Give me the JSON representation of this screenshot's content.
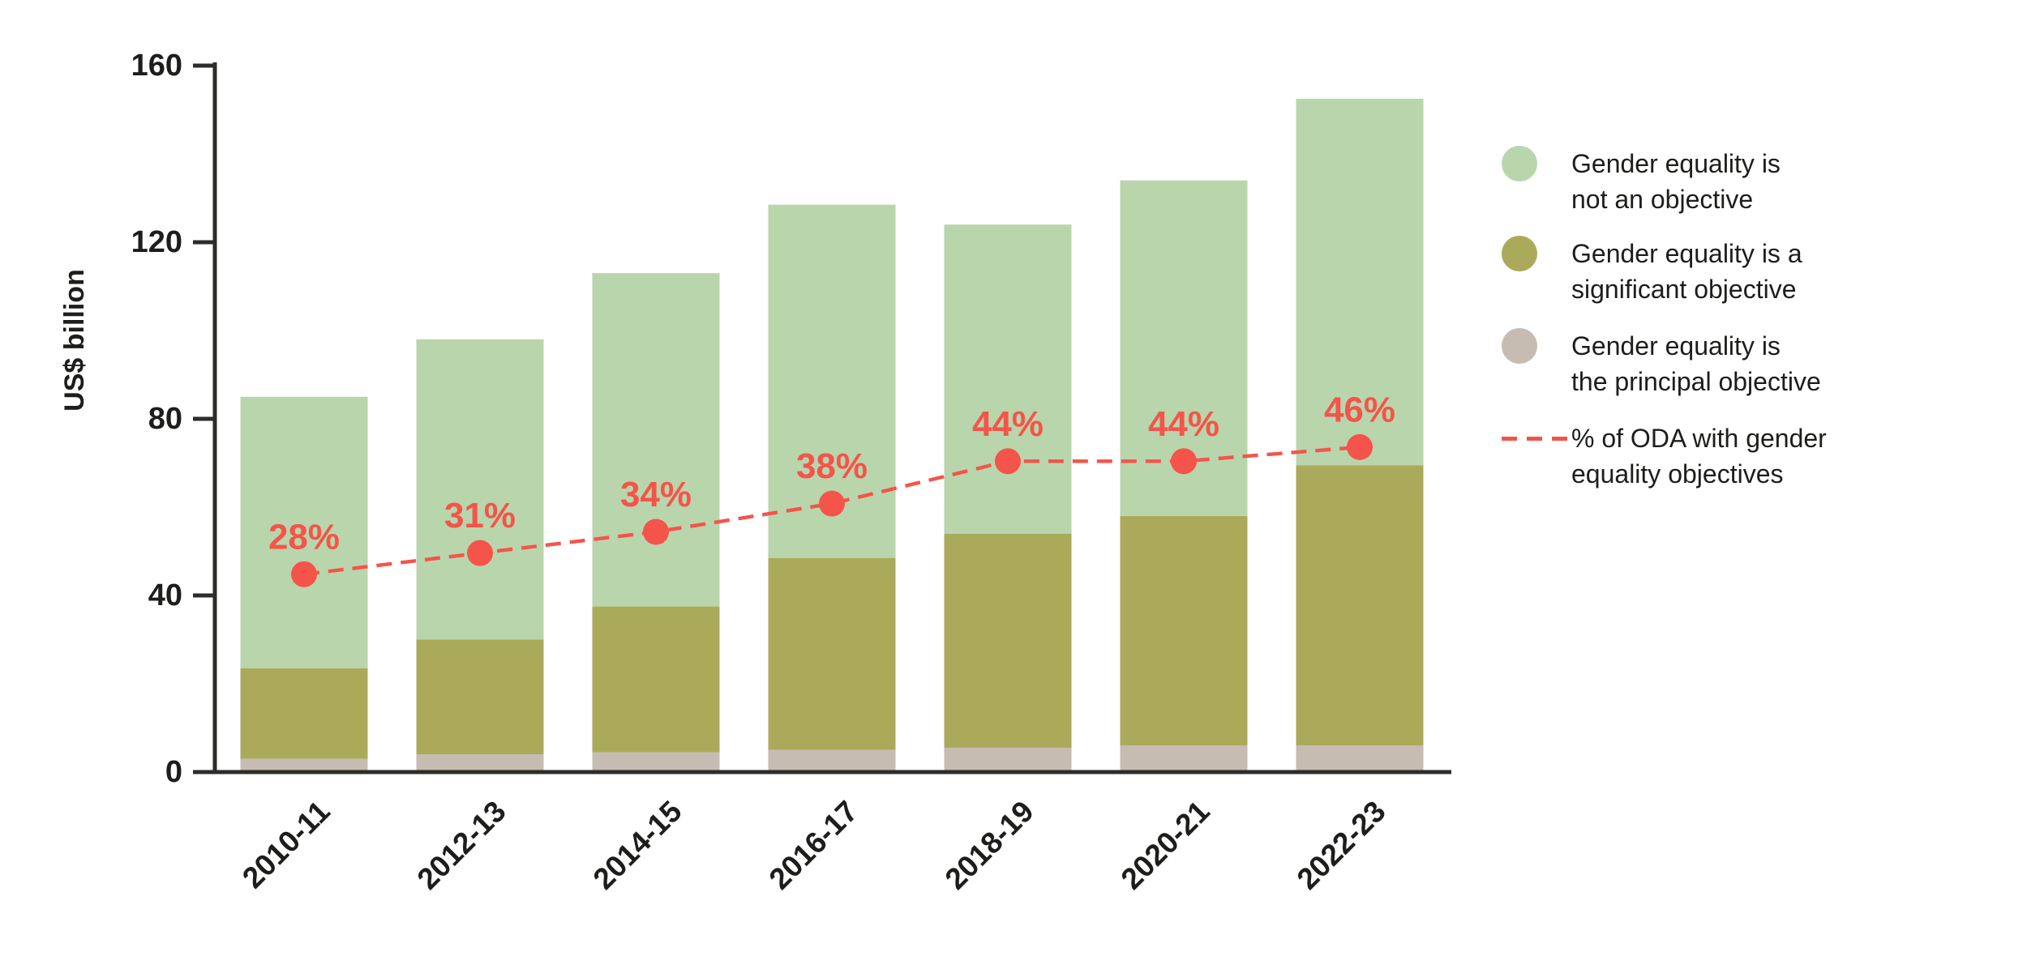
{
  "chart_data": {
    "type": "bar",
    "stacked": true,
    "title": "",
    "xlabel": "",
    "ylabel": "US$ billion",
    "ylim": [
      0,
      160
    ],
    "yticks": [
      0,
      40,
      80,
      120,
      160
    ],
    "grid": false,
    "legend_position": "right",
    "categories": [
      "2010-11",
      "2012-13",
      "2014-15",
      "2016-17",
      "2018-19",
      "2020-21",
      "2022-23"
    ],
    "totals": [
      85,
      98,
      113,
      128.5,
      124,
      134,
      152.5
    ],
    "series": [
      {
        "id": "principal",
        "name": "Gender equality is the principal objective",
        "color": "#c6bcb2",
        "values": [
          3,
          4,
          4.5,
          5,
          5.5,
          6,
          6
        ]
      },
      {
        "id": "significant",
        "name": "Gender equality is a significant objective",
        "color": "#abaa5a",
        "values": [
          20.5,
          26,
          33,
          43.5,
          48.5,
          52,
          63.5
        ]
      },
      {
        "id": "not-objective",
        "name": "Gender equality is not an objective",
        "color": "#b9d5ac",
        "values": [
          61.5,
          68,
          75.5,
          80,
          70,
          76,
          83
        ]
      }
    ],
    "line_series": {
      "id": "oda-pct",
      "name": "% of ODA with gender equality objectives",
      "color": "#f4544a",
      "unit": "%",
      "axis": {
        "min": 0,
        "max": 100
      },
      "values": [
        28,
        31,
        34,
        38,
        44,
        44,
        46
      ],
      "labels": [
        "28%",
        "31%",
        "34%",
        "38%",
        "44%",
        "44%",
        "46%"
      ]
    },
    "legend": [
      {
        "type": "circle",
        "color": "#b9d5ac",
        "line1": "Gender equality is",
        "line2": "not an objective"
      },
      {
        "type": "circle",
        "color": "#abaa5a",
        "line1": "Gender equality is a",
        "line2": "significant objective"
      },
      {
        "type": "circle",
        "color": "#c6bcb2",
        "line1": "Gender equality is",
        "line2": "the principal objective"
      },
      {
        "type": "dashed-line",
        "color": "#f4544a",
        "line1": "% of ODA with gender",
        "line2": "equality objectives"
      }
    ],
    "colors": {
      "axis": "#2e2c2a",
      "text": "#1d1d1b",
      "accent": "#f4544a"
    }
  }
}
